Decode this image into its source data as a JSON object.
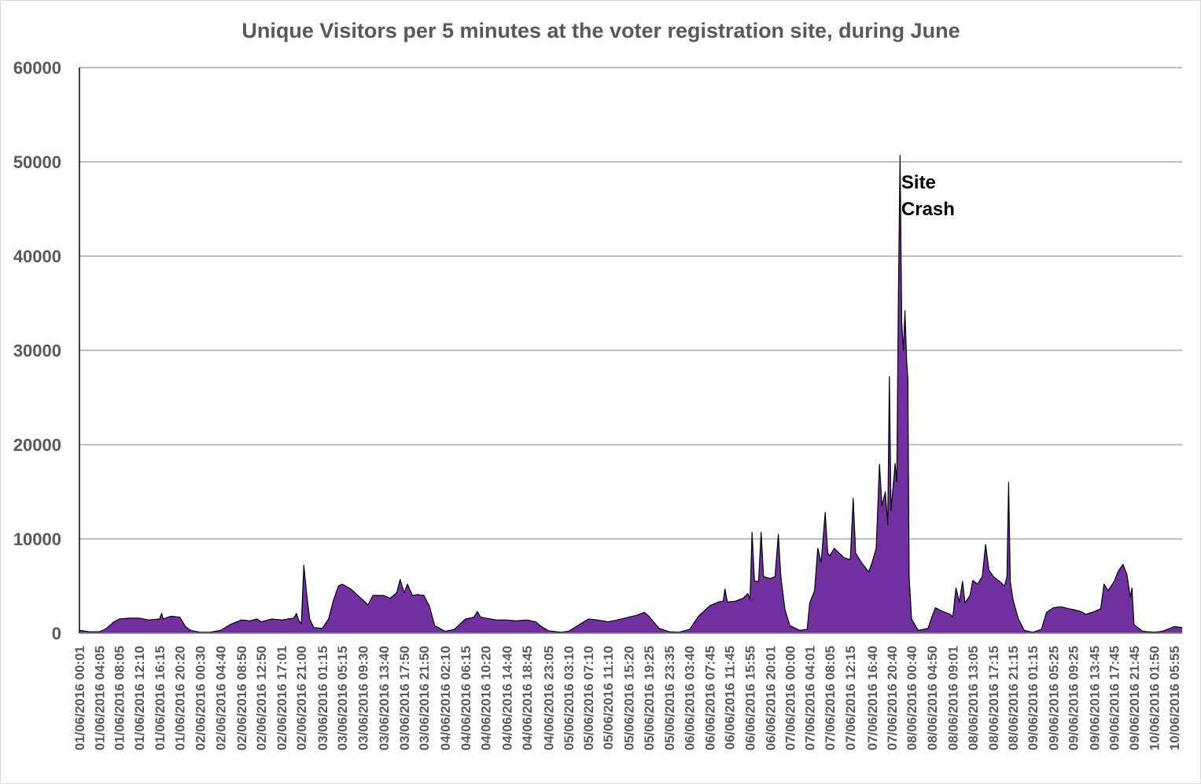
{
  "chart_data": {
    "type": "area",
    "title": "Unique Visitors per 5 minutes at the voter registration site, during June",
    "xlabel": "",
    "ylabel": "",
    "ylim": [
      0,
      60000
    ],
    "yticks": [
      0,
      10000,
      20000,
      30000,
      40000,
      50000,
      60000
    ],
    "ytick_labels": [
      "0",
      "10000",
      "20000",
      "30000",
      "40000",
      "50000",
      "60000"
    ],
    "grid": true,
    "legend": "none",
    "colors": {
      "fill": "#7030a0",
      "line": "#000000",
      "grid": "#808080",
      "axis": "#000000"
    },
    "annotation": {
      "text_line1": "Site",
      "text_line2": "Crash",
      "at": "07/06/2016 20:40"
    },
    "x_tick_labels": [
      "01/06/2016 00:01",
      "01/06/2016 04:05",
      "01/06/2016 08:05",
      "01/06/2016 12:10",
      "01/06/2016 16:15",
      "01/06/2016 20:20",
      "02/06/2016 00:30",
      "02/06/2016 04:40",
      "02/06/2016 08:50",
      "02/06/2016 12:50",
      "02/06/2016 17:01",
      "02/06/2016 21:00",
      "03/06/2016 01:15",
      "03/06/2016 05:15",
      "03/06/2016 09:30",
      "03/06/2016 13:40",
      "03/06/2016 17:50",
      "03/06/2016 21:50",
      "04/06/2016 02:10",
      "04/06/2016 06:15",
      "04/06/2016 10:20",
      "04/06/2016 14:40",
      "04/06/2016 18:45",
      "04/06/2016 23:05",
      "05/06/2016 03:10",
      "05/06/2016 07:10",
      "05/06/2016 11:10",
      "05/06/2016 15:20",
      "05/06/2016 19:25",
      "05/06/2016 23:35",
      "06/06/2016 03:40",
      "06/06/2016 07:45",
      "06/06/2016 11:45",
      "06/06/2016 15:55",
      "06/06/2016 20:01",
      "07/06/2016 00:00",
      "07/06/2016 04:01",
      "07/06/2016 08:05",
      "07/06/2016 12:15",
      "07/06/2016 16:40",
      "07/06/2016 20:40",
      "08/06/2016 00:40",
      "08/06/2016 04:50",
      "08/06/2016 09:01",
      "08/06/2016 13:05",
      "08/06/2016 17:15",
      "08/06/2016 21:15",
      "09/06/2016 01:15",
      "09/06/2016 05:25",
      "09/06/2016 09:25",
      "09/06/2016 13:45",
      "09/06/2016 17:45",
      "09/06/2016 21:45",
      "10/06/2016 01:50",
      "10/06/2016 05:55"
    ],
    "series": [
      {
        "x_start": "01/06/2016 00:01",
        "step_minutes": 5,
        "points": [
          [
            "01/06/2016 00:01",
            300
          ],
          [
            "01/06/2016 02:00",
            150
          ],
          [
            "01/06/2016 04:05",
            150
          ],
          [
            "01/06/2016 05:30",
            500
          ],
          [
            "01/06/2016 07:00",
            1200
          ],
          [
            "01/06/2016 08:05",
            1500
          ],
          [
            "01/06/2016 10:00",
            1600
          ],
          [
            "01/06/2016 12:10",
            1600
          ],
          [
            "01/06/2016 14:00",
            1400
          ],
          [
            "01/06/2016 16:15",
            1500
          ],
          [
            "01/06/2016 16:40",
            2100
          ],
          [
            "01/06/2016 17:00",
            1500
          ],
          [
            "01/06/2016 18:30",
            1800
          ],
          [
            "01/06/2016 20:20",
            1700
          ],
          [
            "01/06/2016 21:30",
            700
          ],
          [
            "01/06/2016 22:30",
            300
          ],
          [
            "02/06/2016 00:30",
            100
          ],
          [
            "02/06/2016 02:30",
            100
          ],
          [
            "02/06/2016 04:40",
            300
          ],
          [
            "02/06/2016 06:30",
            900
          ],
          [
            "02/06/2016 08:50",
            1400
          ],
          [
            "02/06/2016 10:30",
            1300
          ],
          [
            "02/06/2016 12:00",
            1500
          ],
          [
            "02/06/2016 12:50",
            1200
          ],
          [
            "02/06/2016 15:00",
            1500
          ],
          [
            "02/06/2016 17:01",
            1400
          ],
          [
            "02/06/2016 19:30",
            1600
          ],
          [
            "02/06/2016 20:00",
            2100
          ],
          [
            "02/06/2016 20:30",
            1300
          ],
          [
            "02/06/2016 21:00",
            1000
          ],
          [
            "02/06/2016 21:30",
            7200
          ],
          [
            "02/06/2016 22:00",
            4500
          ],
          [
            "02/06/2016 22:40",
            1500
          ],
          [
            "02/06/2016 23:30",
            600
          ],
          [
            "03/06/2016 01:15",
            500
          ],
          [
            "03/06/2016 02:30",
            1500
          ],
          [
            "03/06/2016 03:30",
            3500
          ],
          [
            "03/06/2016 04:30",
            5000
          ],
          [
            "03/06/2016 05:15",
            5200
          ],
          [
            "03/06/2016 07:00",
            4700
          ],
          [
            "03/06/2016 09:30",
            3500
          ],
          [
            "03/06/2016 10:30",
            3000
          ],
          [
            "03/06/2016 11:30",
            4000
          ],
          [
            "03/06/2016 13:40",
            4000
          ],
          [
            "03/06/2016 15:00",
            3700
          ],
          [
            "03/06/2016 16:20",
            4300
          ],
          [
            "03/06/2016 17:00",
            5700
          ],
          [
            "03/06/2016 17:50",
            4300
          ],
          [
            "03/06/2016 18:30",
            5200
          ],
          [
            "03/06/2016 19:30",
            4000
          ],
          [
            "03/06/2016 20:30",
            4100
          ],
          [
            "03/06/2016 21:50",
            4000
          ],
          [
            "03/06/2016 23:00",
            2800
          ],
          [
            "04/06/2016 00:00",
            800
          ],
          [
            "04/06/2016 02:10",
            200
          ],
          [
            "04/06/2016 04:00",
            400
          ],
          [
            "04/06/2016 06:15",
            1500
          ],
          [
            "04/06/2016 08:00",
            1700
          ],
          [
            "04/06/2016 08:40",
            2300
          ],
          [
            "04/06/2016 09:20",
            1700
          ],
          [
            "04/06/2016 10:20",
            1600
          ],
          [
            "04/06/2016 12:30",
            1400
          ],
          [
            "04/06/2016 14:40",
            1400
          ],
          [
            "04/06/2016 16:30",
            1300
          ],
          [
            "04/06/2016 18:45",
            1400
          ],
          [
            "04/06/2016 20:30",
            1200
          ],
          [
            "04/06/2016 21:40",
            700
          ],
          [
            "04/06/2016 23:05",
            250
          ],
          [
            "05/06/2016 01:30",
            100
          ],
          [
            "05/06/2016 03:10",
            200
          ],
          [
            "05/06/2016 05:00",
            800
          ],
          [
            "05/06/2016 07:10",
            1500
          ],
          [
            "05/06/2016 09:00",
            1400
          ],
          [
            "05/06/2016 11:10",
            1200
          ],
          [
            "05/06/2016 13:00",
            1400
          ],
          [
            "05/06/2016 15:20",
            1700
          ],
          [
            "05/06/2016 17:00",
            1900
          ],
          [
            "05/06/2016 18:30",
            2200
          ],
          [
            "05/06/2016 19:25",
            1800
          ],
          [
            "05/06/2016 21:30",
            500
          ],
          [
            "05/06/2016 23:35",
            150
          ],
          [
            "06/06/2016 01:30",
            100
          ],
          [
            "06/06/2016 03:40",
            400
          ],
          [
            "06/06/2016 05:30",
            1800
          ],
          [
            "06/06/2016 07:45",
            2900
          ],
          [
            "06/06/2016 09:30",
            3300
          ],
          [
            "06/06/2016 10:30",
            3400
          ],
          [
            "06/06/2016 10:50",
            4700
          ],
          [
            "06/06/2016 11:20",
            3300
          ],
          [
            "06/06/2016 13:00",
            3400
          ],
          [
            "06/06/2016 14:30",
            3700
          ],
          [
            "06/06/2016 15:30",
            4200
          ],
          [
            "06/06/2016 15:55",
            3600
          ],
          [
            "06/06/2016 16:20",
            10700
          ],
          [
            "06/06/2016 16:50",
            5500
          ],
          [
            "06/06/2016 17:40",
            5500
          ],
          [
            "06/06/2016 18:10",
            10700
          ],
          [
            "06/06/2016 18:40",
            6000
          ],
          [
            "06/06/2016 20:01",
            5800
          ],
          [
            "06/06/2016 21:00",
            6000
          ],
          [
            "06/06/2016 21:40",
            10500
          ],
          [
            "06/06/2016 22:10",
            6000
          ],
          [
            "06/06/2016 23:00",
            2500
          ],
          [
            "07/06/2016 00:00",
            800
          ],
          [
            "07/06/2016 02:00",
            300
          ],
          [
            "07/06/2016 03:30",
            400
          ],
          [
            "07/06/2016 04:01",
            3200
          ],
          [
            "07/06/2016 05:00",
            4500
          ],
          [
            "07/06/2016 05:40",
            9000
          ],
          [
            "07/06/2016 06:20",
            7500
          ],
          [
            "07/06/2016 07:10",
            12800
          ],
          [
            "07/06/2016 07:40",
            8500
          ],
          [
            "07/06/2016 08:05",
            8200
          ],
          [
            "07/06/2016 09:00",
            9000
          ],
          [
            "07/06/2016 10:00",
            8500
          ],
          [
            "07/06/2016 11:00",
            8000
          ],
          [
            "07/06/2016 12:15",
            7800
          ],
          [
            "07/06/2016 12:50",
            14300
          ],
          [
            "07/06/2016 13:20",
            8500
          ],
          [
            "07/06/2016 14:30",
            7500
          ],
          [
            "07/06/2016 16:00",
            6500
          ],
          [
            "07/06/2016 16:40",
            7500
          ],
          [
            "07/06/2016 17:30",
            9000
          ],
          [
            "07/06/2016 18:10",
            17900
          ],
          [
            "07/06/2016 18:40",
            13500
          ],
          [
            "07/06/2016 19:20",
            15000
          ],
          [
            "07/06/2016 19:50",
            11500
          ],
          [
            "07/06/2016 20:10",
            27200
          ],
          [
            "07/06/2016 20:30",
            13000
          ],
          [
            "07/06/2016 20:40",
            14000
          ],
          [
            "07/06/2016 21:20",
            18000
          ],
          [
            "07/06/2016 21:40",
            16000
          ],
          [
            "07/06/2016 22:00",
            36000
          ],
          [
            "07/06/2016 22:20",
            50700
          ],
          [
            "07/06/2016 22:40",
            33000
          ],
          [
            "07/06/2016 23:00",
            30000
          ],
          [
            "07/06/2016 23:20",
            34200
          ],
          [
            "07/06/2016 23:40",
            29000
          ],
          [
            "07/06/2016 23:55",
            27000
          ],
          [
            "08/06/2016 00:10",
            6000
          ],
          [
            "08/06/2016 00:40",
            1500
          ],
          [
            "08/06/2016 02:00",
            300
          ],
          [
            "08/06/2016 04:00",
            500
          ],
          [
            "08/06/2016 04:50",
            1800
          ],
          [
            "08/06/2016 05:30",
            2700
          ],
          [
            "08/06/2016 07:00",
            2300
          ],
          [
            "08/06/2016 08:30",
            2000
          ],
          [
            "08/06/2016 09:01",
            1700
          ],
          [
            "08/06/2016 09:40",
            4800
          ],
          [
            "08/06/2016 10:20",
            3300
          ],
          [
            "08/06/2016 11:00",
            5500
          ],
          [
            "08/06/2016 11:30",
            3200
          ],
          [
            "08/06/2016 12:30",
            4000
          ],
          [
            "08/06/2016 13:05",
            5600
          ],
          [
            "08/06/2016 14:00",
            5200
          ],
          [
            "08/06/2016 15:00",
            6000
          ],
          [
            "08/06/2016 15:40",
            9400
          ],
          [
            "08/06/2016 16:20",
            6700
          ],
          [
            "08/06/2016 17:15",
            6000
          ],
          [
            "08/06/2016 18:30",
            5500
          ],
          [
            "08/06/2016 19:30",
            5000
          ],
          [
            "08/06/2016 20:00",
            6000
          ],
          [
            "08/06/2016 20:20",
            16000
          ],
          [
            "08/06/2016 20:40",
            5500
          ],
          [
            "08/06/2016 21:15",
            3500
          ],
          [
            "08/06/2016 22:20",
            1500
          ],
          [
            "08/06/2016 23:30",
            300
          ],
          [
            "09/06/2016 01:15",
            100
          ],
          [
            "09/06/2016 03:00",
            400
          ],
          [
            "09/06/2016 04:00",
            2200
          ],
          [
            "09/06/2016 05:25",
            2700
          ],
          [
            "09/06/2016 07:00",
            2800
          ],
          [
            "09/06/2016 08:30",
            2600
          ],
          [
            "09/06/2016 09:25",
            2500
          ],
          [
            "09/06/2016 11:00",
            2300
          ],
          [
            "09/06/2016 12:00",
            2000
          ],
          [
            "09/06/2016 13:45",
            2300
          ],
          [
            "09/06/2016 15:00",
            2600
          ],
          [
            "09/06/2016 15:40",
            5200
          ],
          [
            "09/06/2016 16:30",
            4500
          ],
          [
            "09/06/2016 17:45",
            5500
          ],
          [
            "09/06/2016 18:30",
            6500
          ],
          [
            "09/06/2016 19:30",
            7300
          ],
          [
            "09/06/2016 20:20",
            6200
          ],
          [
            "09/06/2016 21:00",
            3800
          ],
          [
            "09/06/2016 21:20",
            4800
          ],
          [
            "09/06/2016 21:45",
            900
          ],
          [
            "09/06/2016 23:30",
            200
          ],
          [
            "10/06/2016 01:50",
            100
          ],
          [
            "10/06/2016 03:30",
            200
          ],
          [
            "10/06/2016 05:00",
            500
          ],
          [
            "10/06/2016 05:55",
            700
          ],
          [
            "10/06/2016 07:30",
            600
          ]
        ]
      }
    ]
  }
}
